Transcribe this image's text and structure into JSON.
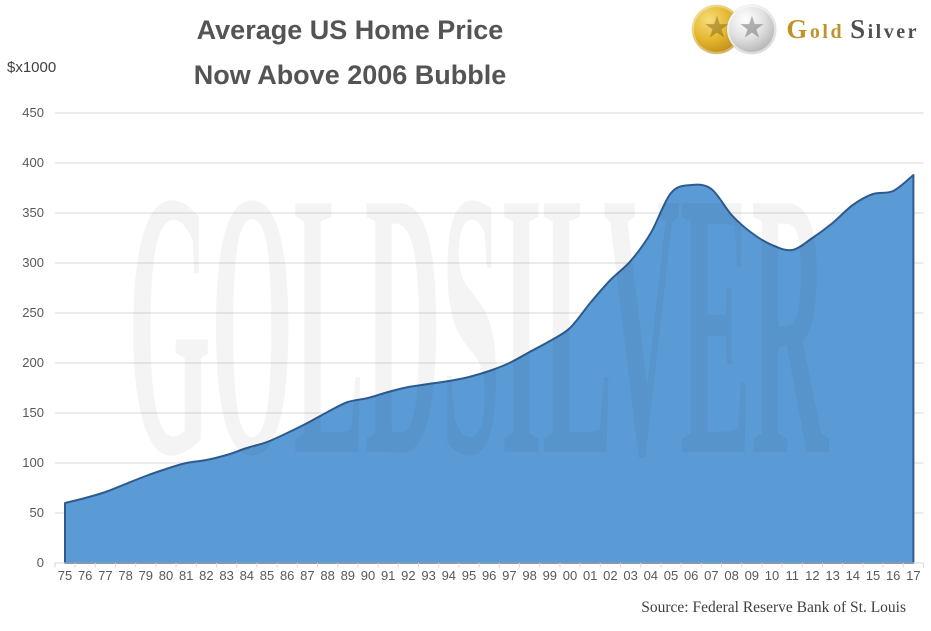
{
  "header": {
    "title_line1": "Average US Home Price",
    "title_line2": "Now Above 2006 Bubble"
  },
  "logo": {
    "brand_gold": "Gold",
    "brand_silver": "Silver"
  },
  "watermark": "GOLDSILVER",
  "source": "Source: Federal Reserve Bank of St. Louis",
  "colors": {
    "area_fill": "#5B9BD5",
    "area_line": "#2E5B8F",
    "gridline": "#d9d9d9",
    "title_text": "#545454",
    "tick_text": "#595959",
    "brand_gold": "#bf9329",
    "brand_gray": "#4f4f4f"
  },
  "chart_data": {
    "type": "area",
    "title": "Average US Home Price Now Above 2006 Bubble",
    "ylabel": "$x1000",
    "xlabel": "",
    "categories": [
      "75",
      "76",
      "77",
      "78",
      "79",
      "80",
      "81",
      "82",
      "83",
      "84",
      "85",
      "86",
      "87",
      "88",
      "89",
      "90",
      "91",
      "92",
      "93",
      "94",
      "95",
      "96",
      "97",
      "98",
      "99",
      "00",
      "01",
      "02",
      "03",
      "04",
      "05",
      "06",
      "07",
      "08",
      "09",
      "10",
      "11",
      "12",
      "13",
      "14",
      "15",
      "16",
      "17"
    ],
    "values": [
      60,
      65,
      71,
      79,
      87,
      94,
      100,
      103,
      108,
      115,
      121,
      130,
      140,
      151,
      161,
      165,
      171,
      176,
      179,
      182,
      186,
      192,
      200,
      211,
      222,
      235,
      260,
      283,
      302,
      330,
      370,
      378,
      374,
      348,
      330,
      318,
      313,
      325,
      340,
      358,
      369,
      372,
      388
    ],
    "ylim": [
      0,
      450
    ],
    "ytick_step": 50,
    "yticks": [
      0,
      50,
      100,
      150,
      200,
      250,
      300,
      350,
      400,
      450
    ],
    "grid": true,
    "legend": "none",
    "series_name": "Average US Home Price ($x1000)"
  }
}
